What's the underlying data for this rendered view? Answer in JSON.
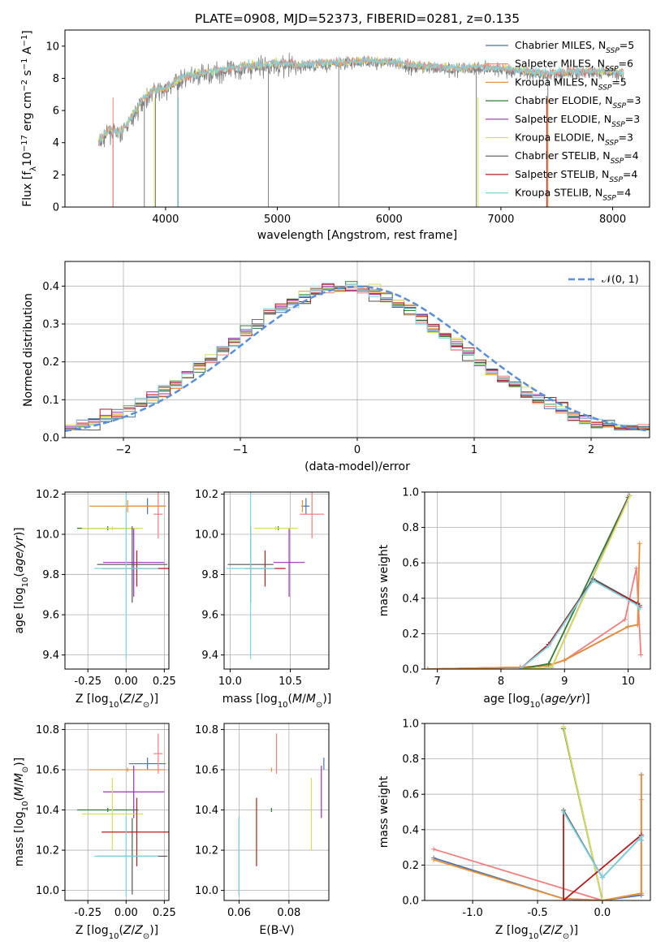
{
  "figure_title": "PLATE=0908, MJD=52373, FIBERID=0281, z=0.135",
  "colors": {
    "Chabrier MILES": "#4c72b0",
    "Salpeter MILES": "#f08080",
    "Kroupa MILES": "#e69138",
    "Chabrier ELODIE": "#2e7d32",
    "Salpeter ELODIE": "#9b30b5",
    "Kroupa ELODIE": "#d4e157",
    "Chabrier STELIB": "#555555",
    "Salpeter STELIB": "#b71c1c",
    "Kroupa STELIB": "#7dd3e0",
    "normal_curve": "#5b8fd6",
    "spectrum": "#808080",
    "grid": "#b0b0b0"
  },
  "chart_data": [
    {
      "id": "spectrum",
      "type": "line",
      "title": "PLATE=0908, MJD=52373, FIBERID=0281, z=0.135",
      "xlabel": "wavelength [Angstrom, rest frame]",
      "ylabel": "Flux [f_λ10^-17 erg cm^-2 s^-1 A^-1]",
      "xlim": [
        3100,
        8330
      ],
      "ylim": [
        0,
        11
      ],
      "xticks": [
        4000,
        5000,
        6000,
        7000,
        8000
      ],
      "yticks": [
        0,
        2,
        4,
        6,
        8,
        10
      ],
      "grid": false,
      "legend_position": "top-right",
      "legend": [
        {
          "model": "Chabrier MILES",
          "text": "Chabrier MILES, N",
          "nssp": "5"
        },
        {
          "model": "Salpeter MILES",
          "text": "Salpeter MILES, N",
          "nssp": "6"
        },
        {
          "model": "Kroupa MILES",
          "text": "Kroupa MILES, N",
          "nssp": "5"
        },
        {
          "model": "Chabrier ELODIE",
          "text": "Chabrier ELODIE, N",
          "nssp": "3"
        },
        {
          "model": "Salpeter ELODIE",
          "text": "Salpeter ELODIE, N",
          "nssp": "3"
        },
        {
          "model": "Kroupa ELODIE",
          "text": "Kroupa ELODIE, N",
          "nssp": "3"
        },
        {
          "model": "Chabrier STELIB",
          "text": "Chabrier STELIB, N",
          "nssp": "4"
        },
        {
          "model": "Salpeter STELIB",
          "text": "Salpeter STELIB, N",
          "nssp": "4"
        },
        {
          "model": "Kroupa STELIB",
          "text": "Kroupa STELIB, N",
          "nssp": "4"
        }
      ],
      "nssp_subscript": "SSP",
      "data_anchors": [
        [
          3400,
          3.9
        ],
        [
          3500,
          4.7
        ],
        [
          3600,
          4.5
        ],
        [
          3700,
          5.5
        ],
        [
          3800,
          6.6
        ],
        [
          3900,
          7.2
        ],
        [
          4000,
          7.2
        ],
        [
          4100,
          7.8
        ],
        [
          4200,
          8.0
        ],
        [
          4400,
          8.3
        ],
        [
          4600,
          8.5
        ],
        [
          4800,
          8.7
        ],
        [
          5000,
          8.8
        ],
        [
          5200,
          8.7
        ],
        [
          5400,
          8.8
        ],
        [
          5600,
          8.9
        ],
        [
          5800,
          9.0
        ],
        [
          6000,
          8.9
        ],
        [
          6200,
          8.7
        ],
        [
          6400,
          8.6
        ],
        [
          6600,
          8.5
        ],
        [
          6800,
          8.6
        ],
        [
          7000,
          8.5
        ],
        [
          7200,
          8.3
        ],
        [
          7400,
          8.2
        ],
        [
          7600,
          8.3
        ],
        [
          7800,
          8.3
        ],
        [
          8000,
          8.3
        ],
        [
          8100,
          8.2
        ]
      ],
      "absorption_dips": [
        [
          3530,
          0.0
        ],
        [
          3810,
          0.0
        ],
        [
          3910,
          0.0
        ],
        [
          4110,
          0.0
        ],
        [
          4920,
          0.0
        ],
        [
          5550,
          0.0
        ],
        [
          6780,
          0.0
        ],
        [
          7420,
          0.0
        ]
      ]
    },
    {
      "id": "residuals",
      "type": "line",
      "xlabel": "(data-model)/error",
      "ylabel": "Normed distribution",
      "xlim": [
        -2.5,
        2.5
      ],
      "ylim": [
        0,
        0.465
      ],
      "xticks": [
        -2,
        -1,
        0,
        1,
        2
      ],
      "yticks": [
        0.0,
        0.1,
        0.2,
        0.3,
        0.4
      ],
      "grid": true,
      "legend_position": "top-right",
      "normal_curve_label": "𝒩(0, 1)",
      "hist_bin_width": 0.1
    },
    {
      "id": "age_vs_Z",
      "type": "scatter",
      "xlabel": "Z [log10(Z/Z⊙)]",
      "ylabel": "age [log10(age/yr)]",
      "xlim": [
        -0.4,
        0.28
      ],
      "ylim": [
        9.33,
        10.21
      ],
      "xticks": [
        -0.25,
        0.0,
        0.25
      ],
      "yticks": [
        9.4,
        9.6,
        9.8,
        10.0,
        10.2
      ],
      "grid": true
    },
    {
      "id": "age_vs_mass",
      "type": "scatter",
      "xlabel": "mass [log10(M/M⊙)]",
      "xlim": [
        9.95,
        10.82
      ],
      "ylim": [
        9.33,
        10.21
      ],
      "xticks": [
        10.0,
        10.5
      ],
      "yticks": [
        9.4,
        9.6,
        9.8,
        10.0,
        10.2
      ],
      "grid": true
    },
    {
      "id": "weight_vs_age",
      "type": "line",
      "xlabel": "age [log10(age/yr)]",
      "ylabel": "mass weight",
      "xlim": [
        6.8,
        10.35
      ],
      "ylim": [
        0,
        1.0
      ],
      "xticks": [
        7,
        8,
        9,
        10
      ],
      "yticks": [
        0.0,
        0.2,
        0.4,
        0.6,
        0.8,
        1.0
      ],
      "grid": true
    },
    {
      "id": "mass_vs_Z",
      "type": "scatter",
      "xlabel": "Z [log10(Z/Z⊙)]",
      "ylabel": "mass [log10(M/M⊙)]",
      "xlim": [
        -0.4,
        0.28
      ],
      "ylim": [
        9.95,
        10.83
      ],
      "xticks": [
        -0.25,
        0.0,
        0.25
      ],
      "yticks": [
        10.0,
        10.2,
        10.4,
        10.6,
        10.8
      ],
      "grid": true
    },
    {
      "id": "mass_vs_ebv",
      "type": "scatter",
      "xlabel": "E(B-V)",
      "xlim": [
        0.054,
        0.096
      ],
      "ylim": [
        9.95,
        10.83
      ],
      "xticks": [
        0.06,
        0.08
      ],
      "yticks": [
        10.0,
        10.2,
        10.4,
        10.6,
        10.8
      ],
      "grid": true
    },
    {
      "id": "weight_vs_Z",
      "type": "line",
      "xlabel": "Z [log10(Z/Z⊙)]",
      "ylabel": "mass weight",
      "xlim": [
        -1.37,
        0.37
      ],
      "ylim": [
        0,
        1.0
      ],
      "xticks": [
        -1.0,
        -0.5,
        0.0
      ],
      "yticks": [
        0.0,
        0.2,
        0.4,
        0.6,
        0.8,
        1.0
      ],
      "grid": true
    }
  ],
  "fits": [
    {
      "model": "Chabrier MILES",
      "Z": 0.14,
      "Zerr": 0.12,
      "age": 10.14,
      "ageerr": 0.04,
      "mass": 10.63,
      "masserr": 0.03,
      "ebv": 0.094
    },
    {
      "model": "Salpeter MILES",
      "Z": 0.21,
      "Zerr": 0.03,
      "age": 10.1,
      "ageerr": 0.12,
      "mass": 10.68,
      "masserr": 0.1,
      "ebv": 0.075
    },
    {
      "model": "Kroupa MILES",
      "Z": 0.01,
      "Zerr": 0.25,
      "age": 10.14,
      "ageerr": 0.03,
      "mass": 10.6,
      "masserr": 0.01,
      "ebv": 0.073
    },
    {
      "model": "Chabrier ELODIE",
      "Z": -0.12,
      "Zerr": 0.2,
      "age": 10.03,
      "ageerr": 0.01,
      "mass": 10.4,
      "masserr": 0.01,
      "ebv": 0.073
    },
    {
      "model": "Salpeter ELODIE",
      "Z": 0.05,
      "Zerr": 0.2,
      "age": 9.86,
      "ageerr": 0.17,
      "mass": 10.49,
      "masserr": 0.13,
      "ebv": 0.093
    },
    {
      "model": "Kroupa ELODIE",
      "Z": -0.09,
      "Zerr": 0.2,
      "age": 10.03,
      "ageerr": 0.01,
      "mass": 10.38,
      "masserr": 0.18,
      "ebv": 0.089
    },
    {
      "model": "Chabrier STELIB",
      "Z": 0.04,
      "Zerr": 0.23,
      "age": 9.85,
      "ageerr": 0.19,
      "mass": 10.17,
      "masserr": 0.19,
      "ebv": 0.06
    },
    {
      "model": "Salpeter STELIB",
      "Z": 0.07,
      "Zerr": 0.23,
      "age": 9.83,
      "ageerr": 0.09,
      "mass": 10.29,
      "masserr": 0.17,
      "ebv": 0.067
    },
    {
      "model": "Kroupa STELIB",
      "Z": 0.0,
      "Zerr": 0.21,
      "age": 9.83,
      "ageerr": 0.45,
      "mass": 10.17,
      "masserr": 0.2,
      "ebv": 0.06
    }
  ],
  "ssp_weights": [
    {
      "model": "Chabrier MILES",
      "age": [
        6.85,
        8.3,
        8.75,
        9.0,
        10.0,
        10.15
      ],
      "w": [
        0.0,
        0.01,
        0.02,
        0.05,
        0.24,
        0.25
      ]
    },
    {
      "model": "Salpeter MILES",
      "age": [
        6.85,
        8.3,
        8.75,
        9.0,
        9.95,
        10.13,
        10.2
      ],
      "w": [
        0.0,
        0.01,
        0.02,
        0.05,
        0.28,
        0.57,
        0.08
      ]
    },
    {
      "model": "Kroupa MILES",
      "age": [
        6.85,
        8.3,
        8.75,
        9.0,
        10.0,
        10.15,
        10.18
      ],
      "w": [
        0.0,
        0.01,
        0.02,
        0.05,
        0.24,
        0.25,
        0.71
      ]
    },
    {
      "model": "Chabrier ELODIE",
      "age": [
        8.3,
        8.75,
        10.0
      ],
      "w": [
        0.0,
        0.03,
        0.97
      ]
    },
    {
      "model": "Salpeter ELODIE",
      "age": [
        8.3,
        8.8,
        10.02
      ],
      "w": [
        0.0,
        0.01,
        0.98
      ]
    },
    {
      "model": "Kroupa ELODIE",
      "age": [
        8.3,
        8.8,
        10.03
      ],
      "w": [
        0.0,
        0.01,
        0.98
      ]
    },
    {
      "model": "Chabrier STELIB",
      "age": [
        8.3,
        8.75,
        9.45,
        10.15,
        10.18
      ],
      "w": [
        0.0,
        0.14,
        0.51,
        0.37,
        0.36
      ]
    },
    {
      "model": "Salpeter STELIB",
      "age": [
        8.3,
        8.75,
        9.45,
        10.15,
        10.18
      ],
      "w": [
        0.0,
        0.14,
        0.5,
        0.37,
        0.35
      ]
    },
    {
      "model": "Kroupa STELIB",
      "age": [
        8.3,
        8.75,
        9.45,
        10.15,
        10.18
      ],
      "w": [
        0.0,
        0.13,
        0.5,
        0.36,
        0.34
      ]
    }
  ],
  "ssp_weights_Z": [
    {
      "model": "Chabrier MILES",
      "Z": [
        -1.3,
        -0.3,
        0.0,
        0.3,
        0.3
      ],
      "w": [
        0.24,
        0.01,
        0.0,
        0.03,
        0.71
      ]
    },
    {
      "model": "Salpeter MILES",
      "Z": [
        -1.3,
        0.0,
        0.3,
        0.3
      ],
      "w": [
        0.29,
        0.0,
        0.04,
        0.57
      ]
    },
    {
      "model": "Kroupa MILES",
      "Z": [
        -1.3,
        -0.3,
        0.0,
        0.3,
        0.3
      ],
      "w": [
        0.23,
        0.01,
        0.0,
        0.04,
        0.71
      ]
    },
    {
      "model": "Chabrier ELODIE",
      "Z": [
        -0.3,
        0.0
      ],
      "w": [
        0.97,
        0.0
      ]
    },
    {
      "model": "Salpeter ELODIE",
      "Z": [
        -0.3,
        0.0
      ],
      "w": [
        0.98,
        0.0
      ]
    },
    {
      "model": "Kroupa ELODIE",
      "Z": [
        -0.3,
        0.0
      ],
      "w": [
        0.98,
        0.0
      ]
    },
    {
      "model": "Chabrier STELIB",
      "Z": [
        -0.3,
        0.0,
        0.3,
        0.3
      ],
      "w": [
        0.51,
        0.13,
        0.36,
        0.34
      ]
    },
    {
      "model": "Salpeter STELIB",
      "Z": [
        -0.3,
        -0.3,
        0.3,
        0.3
      ],
      "w": [
        0.5,
        0.0,
        0.37,
        0.36
      ]
    },
    {
      "model": "Kroupa STELIB",
      "Z": [
        -0.3,
        0.0,
        0.3,
        0.3
      ],
      "w": [
        0.5,
        0.13,
        0.36,
        0.34
      ]
    }
  ]
}
